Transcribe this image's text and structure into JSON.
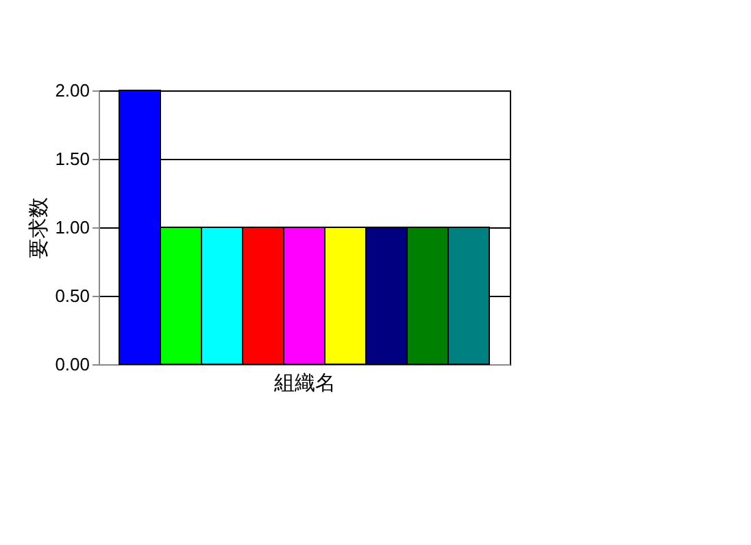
{
  "chart_data": {
    "type": "bar",
    "xlabel": "組織名",
    "ylabel": "要求数",
    "categories": [
      null
    ],
    "series": [
      {
        "color": "#0000ff",
        "values": [
          2
        ]
      },
      {
        "color": "#00ff00",
        "values": [
          1
        ]
      },
      {
        "color": "#00ffff",
        "values": [
          1
        ]
      },
      {
        "color": "#ff0000",
        "values": [
          1
        ]
      },
      {
        "color": "#ff00ff",
        "values": [
          1
        ]
      },
      {
        "color": "#ffff00",
        "values": [
          1
        ]
      },
      {
        "color": "#000080",
        "values": [
          1
        ]
      },
      {
        "color": "#008000",
        "values": [
          1
        ]
      },
      {
        "color": "#008080",
        "values": [
          1
        ]
      }
    ],
    "ylim": [
      0,
      2
    ],
    "yticks": [
      {
        "value": 0,
        "label": "0.00"
      },
      {
        "value": 0.5,
        "label": "0.50"
      },
      {
        "value": 1,
        "label": "1.00"
      },
      {
        "value": 1.5,
        "label": "1.50"
      },
      {
        "value": 2,
        "label": "2.00"
      }
    ],
    "grid": "y",
    "legend": false
  }
}
